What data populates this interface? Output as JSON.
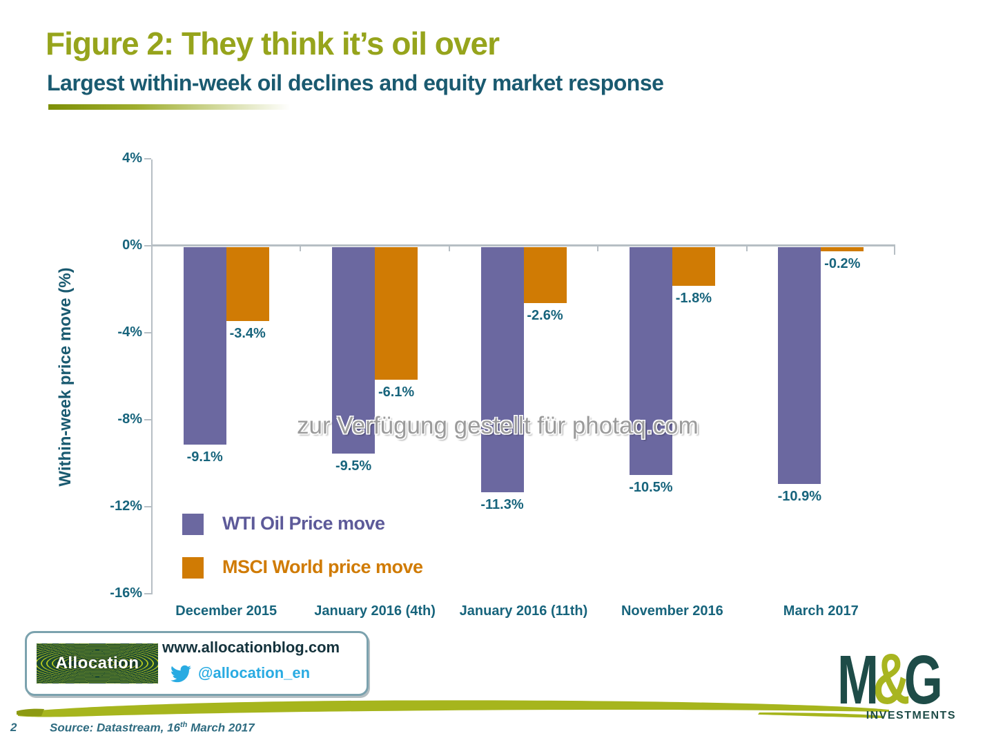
{
  "page": {
    "title": "Figure 2: They think it’s oil over",
    "subtitle": "Largest within-week oil declines and equity market response",
    "watermark": "zur Verfügung gestellt für photaq.com",
    "page_number": "2",
    "source_prefix": "Source: Datastream, 16",
    "source_sup": "th",
    "source_suffix": " March 2017"
  },
  "chart_data": {
    "type": "bar",
    "title": "Largest within-week oil declines and equity market response",
    "categories": [
      "December 2015",
      "January 2016 (4th)",
      "January 2016 (11th)",
      "November 2016",
      "March 2017"
    ],
    "series": [
      {
        "name": "WTI Oil Price move",
        "color": "#6b68a0",
        "values": [
          -9.1,
          -9.5,
          -11.3,
          -10.5,
          -10.9
        ]
      },
      {
        "name": "MSCI World price move",
        "color": "#d07b04",
        "values": [
          -3.4,
          -6.1,
          -2.6,
          -1.8,
          -0.2
        ]
      }
    ],
    "data_labels": [
      [
        "-9.1%",
        "-9.5%",
        "-11.3%",
        "-10.5%",
        "-10.9%"
      ],
      [
        "-3.4%",
        "-6.1%",
        "-2.6%",
        "-1.8%",
        "-0.2%"
      ]
    ],
    "ylabel": "Within-week price move  (%)",
    "xlabel": "",
    "ylim": [
      -16,
      4
    ],
    "y_ticks": {
      "labels": [
        "4%",
        "0%",
        "-4%",
        "-8%",
        "-12%",
        "-16%"
      ],
      "values": [
        4,
        0,
        -4,
        -8,
        -12,
        -16
      ]
    },
    "grid": false,
    "legend_position": "inside-bottom-left",
    "bar_orientation": "vertical-negative"
  },
  "footer": {
    "banner": {
      "logo_text": "Allocation",
      "website": "www.allocationblog.com",
      "twitter_handle": "@allocation_en"
    },
    "brand": {
      "letter_m": "M",
      "letter_amp": "&",
      "letter_g": "G",
      "subtext": "INVESTMENTS"
    }
  },
  "colors": {
    "title_olive": "#96a41c",
    "teal_heading": "#1a5a70",
    "label_teal": "#17647c",
    "axis_grey": "#b6bec4",
    "wti_purple": "#6b68a0",
    "msci_orange": "#d07b04",
    "twitter_blue": "#29abe2",
    "brand_dark": "#1e4c48",
    "brand_olive": "#a8b520",
    "brush_olive": "#a6b51d"
  }
}
